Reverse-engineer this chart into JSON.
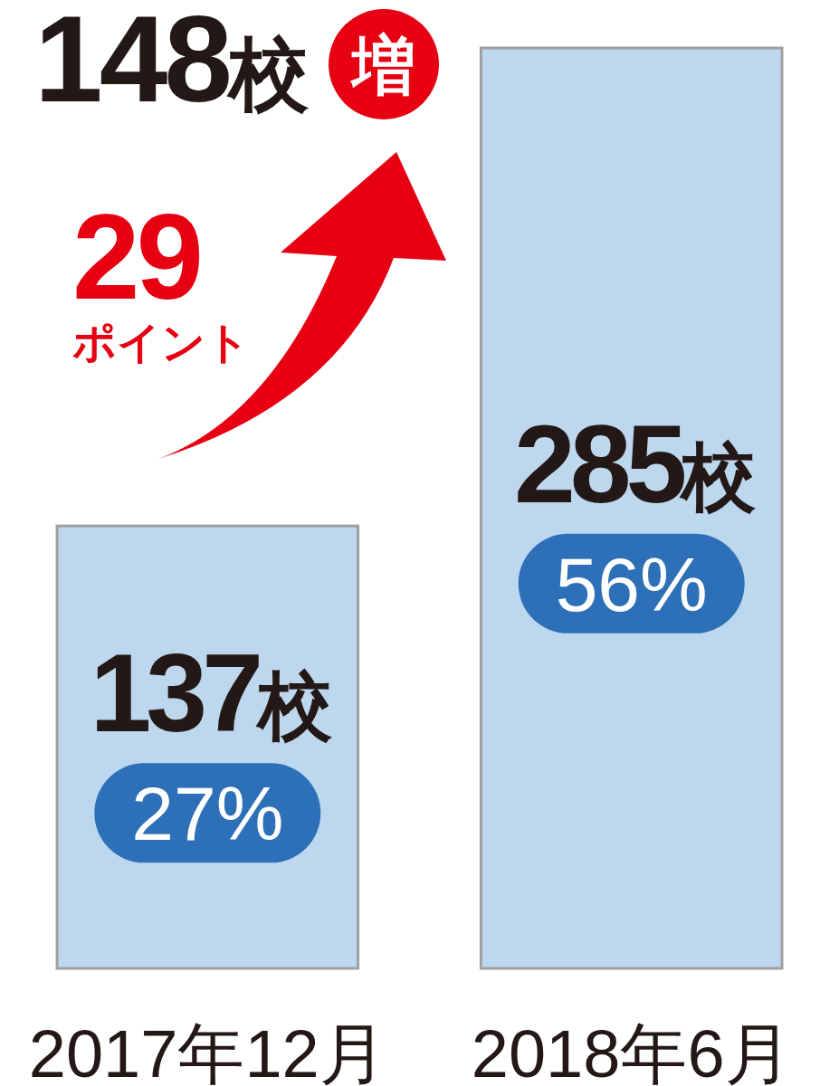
{
  "chart_data": {
    "type": "bar",
    "categories": [
      "2017年12月",
      "2018年6月"
    ],
    "values": [
      137,
      285
    ],
    "value_labels": [
      "137校",
      "285校"
    ],
    "color": "#bdd7ee",
    "annotations": [
      "148校",
      "増",
      "29",
      "ポイント",
      "27%",
      "56%"
    ]
  }
}
